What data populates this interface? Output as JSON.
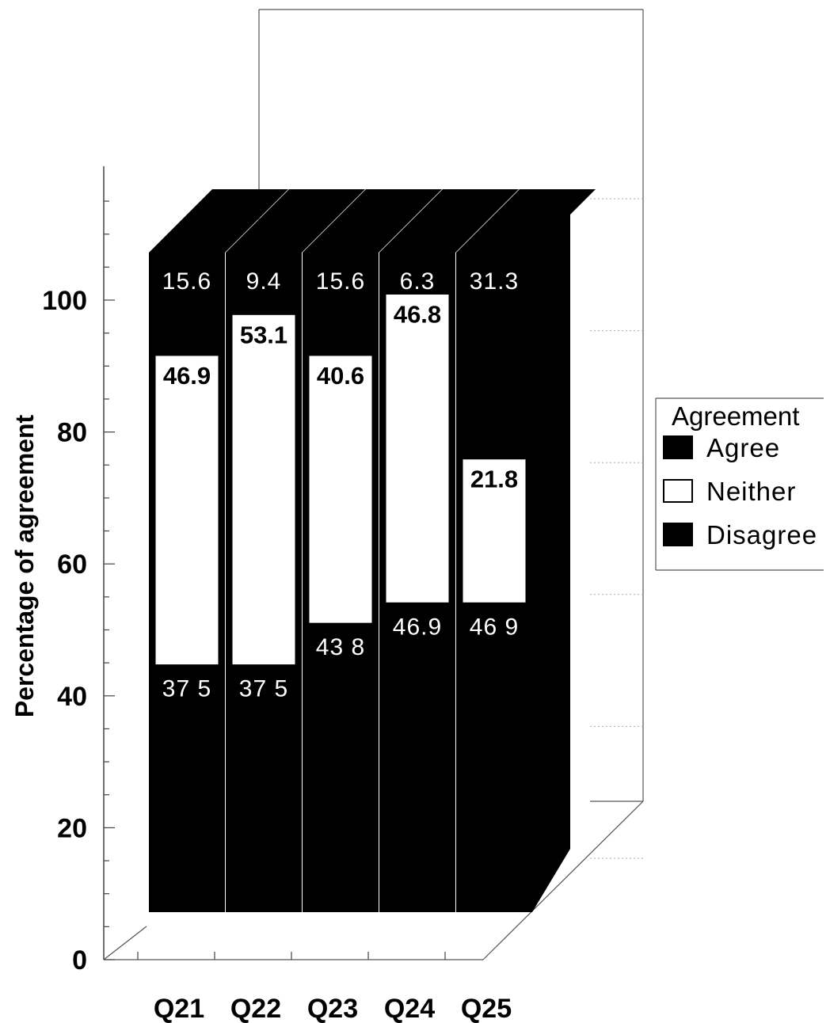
{
  "chart_data": {
    "type": "bar",
    "stacked": true,
    "three_d": true,
    "categories": [
      "Q21",
      "Q22",
      "Q23",
      "Q24",
      "Q25"
    ],
    "series": [
      {
        "name": "Disagree",
        "values": [
          37.5,
          37.5,
          43.8,
          46.9,
          46.9
        ],
        "color": "#000000"
      },
      {
        "name": "Neither",
        "values": [
          46.9,
          53.1,
          40.6,
          46.8,
          21.8
        ],
        "color": "#ffffff"
      },
      {
        "name": "Agree",
        "values": [
          15.6,
          9.4,
          15.6,
          6.3,
          31.3
        ],
        "color": "#000000"
      }
    ],
    "labels": {
      "Disagree": [
        "37 5",
        "37 5",
        "43 8",
        "46.9",
        "46 9"
      ],
      "Neither": [
        "46.9",
        "53.1",
        "40.6",
        "46.8",
        "21.8"
      ],
      "Agree": [
        "15.6",
        "9.4",
        "15.6",
        "6.3",
        "31.3"
      ]
    },
    "ylabel": "Percentage of agreement",
    "xlabel": "",
    "ylim": [
      0,
      100
    ],
    "yticks": [
      "0",
      "20",
      "40",
      "60",
      "80",
      "100"
    ],
    "legend": {
      "title": "Agreement",
      "position": "right",
      "items": [
        {
          "label": "Agree",
          "swatch": "#000000"
        },
        {
          "label": "Neither",
          "swatch": "#ffffff"
        },
        {
          "label": "Disagree",
          "swatch": "#000000"
        }
      ]
    }
  }
}
